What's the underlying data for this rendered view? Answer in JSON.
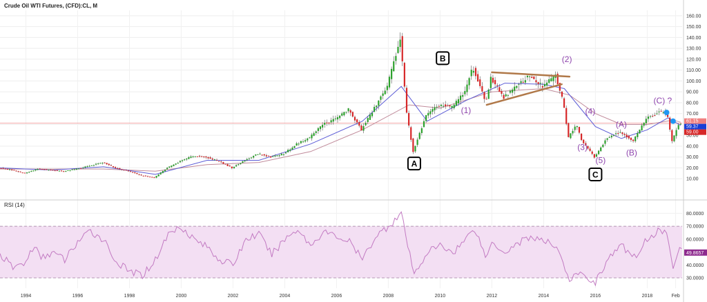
{
  "header": {
    "title": "Crude Oil WTI Futures, (CFD):CL, M"
  },
  "rsi_panel": {
    "title": "RSI (14)"
  },
  "colors": {
    "up": "#2ca02c",
    "down": "#d62728",
    "ma_fast": "#5b5bd6",
    "ma_slow": "#c08a9a",
    "rsi": "#c27ac2",
    "rsi_band": "#f3dff3",
    "trendline": "#b07848",
    "wave_label": "#8e44ad",
    "current_line": "#f2a6a6"
  },
  "chart_data": [
    {
      "type": "candlestick",
      "title": "Crude Oil WTI Futures, (CFD):CL, M",
      "xlim": [
        1993.0,
        2019.35
      ],
      "ylim": [
        0,
        165
      ],
      "y_ticks": [
        "10.00",
        "20.00",
        "30.00",
        "40.00",
        "50.00",
        "60.00",
        "70.00",
        "80.00",
        "90.00",
        "100.00",
        "110.00",
        "120.00",
        "130.00",
        "140.00",
        "150.00",
        "160.00"
      ],
      "x_ticks": [
        "1994",
        "1996",
        "1998",
        "2000",
        "2002",
        "2004",
        "2006",
        "2008",
        "2010",
        "2012",
        "2014",
        "2016",
        "2018",
        "Feb"
      ],
      "x_tick_values": [
        1994,
        1996,
        1998,
        2000,
        2002,
        2004,
        2006,
        2008,
        2010,
        2012,
        2014,
        2016,
        2018,
        2019.1
      ],
      "anchors": [
        [
          1993.0,
          20
        ],
        [
          1993.5,
          18
        ],
        [
          1994.0,
          15
        ],
        [
          1994.5,
          19
        ],
        [
          1995.0,
          18
        ],
        [
          1995.5,
          17
        ],
        [
          1996.0,
          19
        ],
        [
          1996.5,
          22
        ],
        [
          1997.0,
          25
        ],
        [
          1997.5,
          20
        ],
        [
          1998.0,
          17
        ],
        [
          1998.5,
          13
        ],
        [
          1999.0,
          11
        ],
        [
          1999.5,
          20
        ],
        [
          2000.0,
          26
        ],
        [
          2000.5,
          31
        ],
        [
          2001.0,
          30
        ],
        [
          2001.5,
          26
        ],
        [
          2002.0,
          20
        ],
        [
          2002.5,
          27
        ],
        [
          2003.0,
          33
        ],
        [
          2003.5,
          30
        ],
        [
          2004.0,
          33
        ],
        [
          2004.5,
          42
        ],
        [
          2005.0,
          48
        ],
        [
          2005.5,
          60
        ],
        [
          2006.0,
          65
        ],
        [
          2006.5,
          74
        ],
        [
          2007.0,
          55
        ],
        [
          2007.5,
          75
        ],
        [
          2008.0,
          95
        ],
        [
          2008.5,
          140
        ],
        [
          2008.75,
          70
        ],
        [
          2009.0,
          35
        ],
        [
          2009.5,
          68
        ],
        [
          2010.0,
          78
        ],
        [
          2010.5,
          76
        ],
        [
          2011.0,
          90
        ],
        [
          2011.3,
          113
        ],
        [
          2011.8,
          80
        ],
        [
          2012.0,
          103
        ],
        [
          2012.5,
          85
        ],
        [
          2013.0,
          95
        ],
        [
          2013.5,
          105
        ],
        [
          2014.0,
          95
        ],
        [
          2014.5,
          105
        ],
        [
          2014.8,
          80
        ],
        [
          2015.0,
          48
        ],
        [
          2015.3,
          60
        ],
        [
          2015.5,
          46
        ],
        [
          2016.0,
          30
        ],
        [
          2016.5,
          48
        ],
        [
          2017.0,
          53
        ],
        [
          2017.5,
          45
        ],
        [
          2018.0,
          65
        ],
        [
          2018.5,
          72
        ],
        [
          2018.8,
          70
        ],
        [
          2019.0,
          45
        ],
        [
          2019.2,
          57
        ],
        [
          2019.3,
          61
        ]
      ],
      "current_price": 61.15,
      "price_tags": [
        "61.15",
        "59.37",
        "59.00"
      ],
      "ma_fast": [
        [
          1993.0,
          20
        ],
        [
          1995.0,
          18
        ],
        [
          1997.0,
          21
        ],
        [
          1999.0,
          14
        ],
        [
          2001.0,
          27
        ],
        [
          2003.0,
          27
        ],
        [
          2005.0,
          42
        ],
        [
          2007.0,
          63
        ],
        [
          2008.5,
          95
        ],
        [
          2009.5,
          63
        ],
        [
          2011.0,
          82
        ],
        [
          2012.5,
          98
        ],
        [
          2014.0,
          97
        ],
        [
          2014.8,
          93
        ],
        [
          2016.0,
          58
        ],
        [
          2017.0,
          47
        ],
        [
          2018.0,
          55
        ],
        [
          2018.8,
          66
        ],
        [
          2019.3,
          59
        ]
      ],
      "ma_slow": [
        [
          1993.0,
          19
        ],
        [
          1997.0,
          19
        ],
        [
          1999.0,
          17
        ],
        [
          2001.0,
          23
        ],
        [
          2003.0,
          25
        ],
        [
          2005.0,
          35
        ],
        [
          2007.0,
          55
        ],
        [
          2008.8,
          78
        ],
        [
          2010.0,
          75
        ],
        [
          2012.0,
          90
        ],
        [
          2014.0,
          93
        ],
        [
          2015.0,
          87
        ],
        [
          2016.0,
          70
        ],
        [
          2017.0,
          60
        ],
        [
          2018.0,
          60
        ],
        [
          2019.0,
          64
        ],
        [
          2019.3,
          62
        ]
      ],
      "trendlines": [
        {
          "from": [
            2012.0,
            108
          ],
          "to": [
            2015.0,
            104
          ]
        },
        {
          "from": [
            2011.8,
            78
          ],
          "to": [
            2014.7,
            97
          ]
        }
      ],
      "annotations": [
        {
          "text": "A",
          "x": 2009.0,
          "y": 24,
          "boxed": true
        },
        {
          "text": "B",
          "x": 2010.1,
          "y": 121,
          "boxed": true
        },
        {
          "text": "C",
          "x": 2016.0,
          "y": 14,
          "boxed": true
        },
        {
          "text": "(1)",
          "x": 2011.0,
          "y": 73,
          "boxed": false
        },
        {
          "text": "(2)",
          "x": 2014.9,
          "y": 120,
          "boxed": false
        },
        {
          "text": "(3)",
          "x": 2015.5,
          "y": 39,
          "boxed": false
        },
        {
          "text": "(4)",
          "x": 2015.8,
          "y": 72,
          "boxed": false
        },
        {
          "text": "(5)",
          "x": 2016.2,
          "y": 27,
          "boxed": false
        },
        {
          "text": "(A)",
          "x": 2017.0,
          "y": 60,
          "boxed": false
        },
        {
          "text": "(B)",
          "x": 2017.4,
          "y": 34,
          "boxed": false
        },
        {
          "text": "(C) ?",
          "x": 2018.6,
          "y": 82,
          "boxed": false
        }
      ]
    },
    {
      "type": "line",
      "title": "RSI (14)",
      "ylim": [
        22,
        85
      ],
      "y_ticks": [
        "30.0000",
        "40.0000",
        "50.0000",
        "60.0000",
        "70.0000",
        "80.0000"
      ],
      "bands": [
        30,
        70
      ],
      "current_value": "49.8657",
      "anchors": [
        [
          1993.0,
          48
        ],
        [
          1993.5,
          38
        ],
        [
          1994.0,
          42
        ],
        [
          1994.3,
          55
        ],
        [
          1994.6,
          45
        ],
        [
          1995.0,
          50
        ],
        [
          1995.5,
          44
        ],
        [
          1996.0,
          58
        ],
        [
          1996.5,
          66
        ],
        [
          1997.0,
          60
        ],
        [
          1997.5,
          42
        ],
        [
          1998.0,
          35
        ],
        [
          1998.5,
          32
        ],
        [
          1999.0,
          44
        ],
        [
          1999.5,
          64
        ],
        [
          2000.0,
          70
        ],
        [
          2000.5,
          60
        ],
        [
          2001.0,
          54
        ],
        [
          2001.5,
          44
        ],
        [
          2002.0,
          40
        ],
        [
          2002.5,
          60
        ],
        [
          2003.0,
          64
        ],
        [
          2003.5,
          48
        ],
        [
          2004.0,
          60
        ],
        [
          2004.5,
          68
        ],
        [
          2005.0,
          55
        ],
        [
          2005.5,
          66
        ],
        [
          2006.0,
          62
        ],
        [
          2006.5,
          58
        ],
        [
          2007.0,
          44
        ],
        [
          2007.5,
          62
        ],
        [
          2008.0,
          70
        ],
        [
          2008.5,
          80
        ],
        [
          2008.8,
          50
        ],
        [
          2009.0,
          32
        ],
        [
          2009.5,
          50
        ],
        [
          2010.0,
          55
        ],
        [
          2010.5,
          50
        ],
        [
          2011.0,
          60
        ],
        [
          2011.3,
          70
        ],
        [
          2011.8,
          45
        ],
        [
          2012.0,
          58
        ],
        [
          2012.5,
          50
        ],
        [
          2013.0,
          57
        ],
        [
          2013.5,
          62
        ],
        [
          2014.0,
          58
        ],
        [
          2014.5,
          55
        ],
        [
          2014.8,
          40
        ],
        [
          2015.0,
          25
        ],
        [
          2015.3,
          35
        ],
        [
          2015.6,
          30
        ],
        [
          2016.0,
          27
        ],
        [
          2016.5,
          45
        ],
        [
          2017.0,
          55
        ],
        [
          2017.5,
          46
        ],
        [
          2018.0,
          60
        ],
        [
          2018.5,
          68
        ],
        [
          2018.8,
          62
        ],
        [
          2019.0,
          40
        ],
        [
          2019.2,
          52
        ],
        [
          2019.3,
          49.8657
        ]
      ]
    }
  ]
}
